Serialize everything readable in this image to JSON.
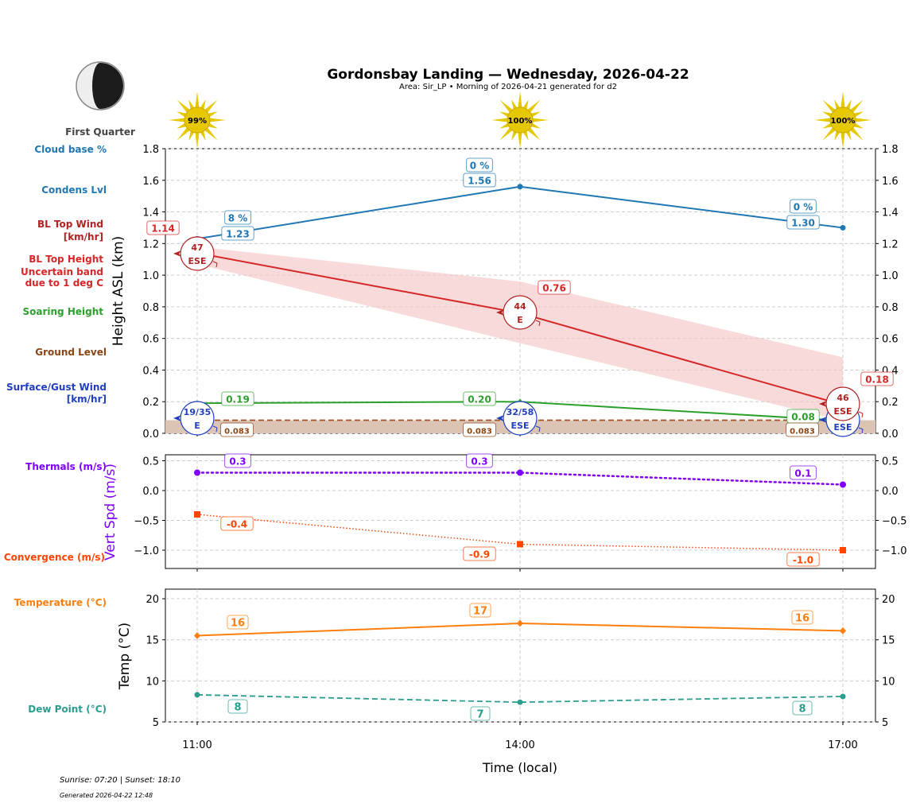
{
  "title": "Gordonsbay Landing — Wednesday, 2026-04-22",
  "subtitle": "Area: Sir_LP • Morning of 2026-04-21 generated for d2",
  "moon": {
    "phase": "First Quarter"
  },
  "sun_strength": [
    "99%",
    "100%",
    "100%"
  ],
  "footer": {
    "sun_times": "Sunrise: 07:20 | Sunset: 18:10",
    "generated": "Generated 2026-04-22 12:48"
  },
  "colors": {
    "cloud": "#1f77b4",
    "bltop": "#d62728",
    "bltop_label": "#b22222",
    "soaring": "#2ca02c",
    "ground": "#8b4513",
    "surface_wind": "#1f3fbf",
    "thermals": "#8000ff",
    "convergence": "#ff4500",
    "temperature": "#ff7f0e",
    "dewpoint": "#2a9d8f",
    "sun": "#e6c800"
  },
  "side_labels": {
    "cloud_base": "Cloud base %",
    "condens": "Condens Lvl",
    "bl_wind": [
      "BL Top Wind",
      "[km/hr]"
    ],
    "bl_height": [
      "BL Top Height",
      "Uncertain band",
      "due to 1 deg C"
    ],
    "soaring": "Soaring Height",
    "ground": "Ground Level",
    "surface_wind": [
      "Surface/Gust Wind",
      "[km/hr]"
    ],
    "thermals": "Thermals (m/s)",
    "convergence": "Convergence (m/s)",
    "temperature": "Temperature (°C)",
    "dewpoint": "Dew Point (°C)"
  },
  "chart_data": [
    {
      "type": "line",
      "panel": "height",
      "ylabel": "Height ASL (km)",
      "ylim": [
        0,
        1.8
      ],
      "yticks": [
        "0.0",
        "0.2",
        "0.4",
        "0.6",
        "0.8",
        "1.0",
        "1.2",
        "1.4",
        "1.6",
        "1.8"
      ],
      "grid": true,
      "x": [
        "11:00",
        "14:00",
        "17:00"
      ],
      "series": [
        {
          "key": "condens",
          "values": [
            1.23,
            1.56,
            1.3
          ],
          "labels": [
            "1.23",
            "1.56",
            "1.30"
          ],
          "cloud_pct": [
            "8 %",
            "0 %",
            "0 %"
          ]
        },
        {
          "key": "bltop",
          "values": [
            1.14,
            0.76,
            0.18
          ],
          "labels": [
            "1.14",
            "0.76",
            "0.18"
          ],
          "band_upper": [
            1.18,
            0.96,
            0.48
          ],
          "band_lower": [
            1.07,
            0.57,
            0.08
          ]
        },
        {
          "key": "bl_wind",
          "speed": [
            "47",
            "44",
            "46"
          ],
          "dir": [
            "ESE",
            "E",
            "ESE"
          ]
        },
        {
          "key": "soaring",
          "values": [
            0.19,
            0.2,
            0.08
          ],
          "labels": [
            "0.19",
            "0.20",
            "0.08"
          ]
        },
        {
          "key": "ground",
          "values": [
            0.083,
            0.083,
            0.083
          ],
          "labels": [
            "0.083",
            "0.083",
            "0.083"
          ]
        },
        {
          "key": "surface_wind",
          "speed": [
            "19/35",
            "32/58",
            ""
          ],
          "dir": [
            "E",
            "ESE",
            "ESE"
          ]
        }
      ]
    },
    {
      "type": "line",
      "panel": "vertical",
      "ylabel": "Vert Spd (m/s)",
      "ylim": [
        -1.3,
        0.6
      ],
      "yticks": [
        "−1.0",
        "−0.5",
        "0.0",
        "0.5"
      ],
      "ytick_values": [
        -1.0,
        -0.5,
        0.0,
        0.5
      ],
      "grid": true,
      "x": [
        "11:00",
        "14:00",
        "17:00"
      ],
      "series": [
        {
          "key": "thermals",
          "values": [
            0.3,
            0.3,
            0.1
          ],
          "labels": [
            "0.3",
            "0.3",
            "0.1"
          ]
        },
        {
          "key": "convergence",
          "values": [
            -0.4,
            -0.9,
            -1.0
          ],
          "labels": [
            "-0.4",
            "-0.9",
            "-1.0"
          ]
        }
      ]
    },
    {
      "type": "line",
      "panel": "temperature",
      "ylabel": "Temp (°C)",
      "xlabel": "Time (local)",
      "ylim": [
        5,
        21.2
      ],
      "yticks": [
        "5",
        "10",
        "15",
        "20"
      ],
      "ytick_values": [
        5,
        10,
        15,
        20
      ],
      "grid": true,
      "x": [
        "11:00",
        "14:00",
        "17:00"
      ],
      "series": [
        {
          "key": "temperature",
          "values": [
            15.5,
            17.0,
            16.1
          ],
          "labels": [
            "16",
            "17",
            "16"
          ]
        },
        {
          "key": "dewpoint",
          "values": [
            8.3,
            7.4,
            8.1
          ],
          "labels": [
            "8",
            "7",
            "8"
          ]
        }
      ]
    }
  ]
}
